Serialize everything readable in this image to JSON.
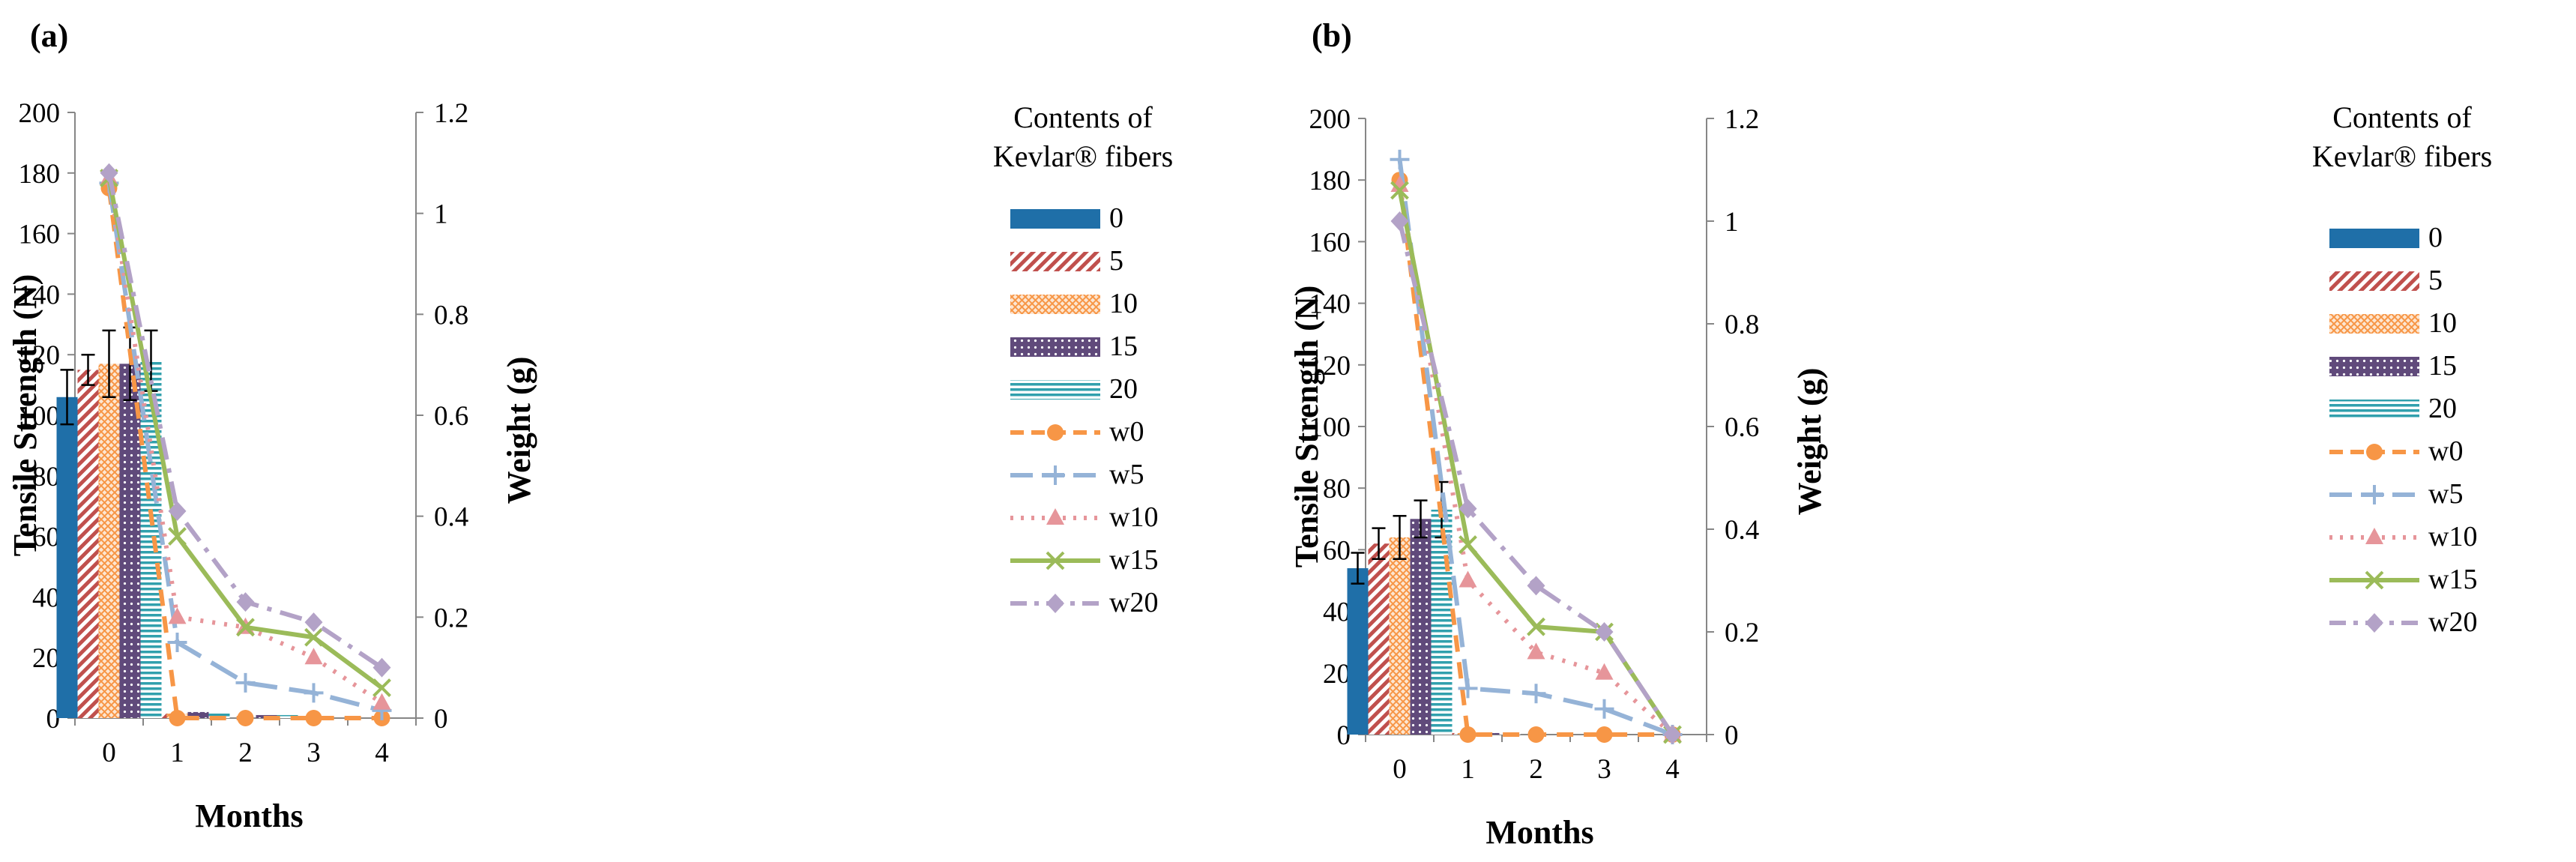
{
  "chart_data": [
    {
      "panel_label": "(a)",
      "type": "bar+line",
      "xlabel": "Months",
      "ylabel_left": "Tensile Strength  (N)",
      "ylabel_right": "Weight  (g)",
      "x": [
        "0",
        "1",
        "2",
        "3",
        "4"
      ],
      "ylim_left": [
        0,
        200
      ],
      "ylim_right": [
        0,
        1.2
      ],
      "yticks_left": [
        "0",
        "20",
        "40",
        "60",
        "80",
        "100",
        "120",
        "140",
        "160",
        "180",
        "200"
      ],
      "yticks_right": [
        "0",
        "0.2",
        "0.4",
        "0.6",
        "0.8",
        "1",
        "1.2"
      ],
      "grid": false,
      "legend_position": "right",
      "legend_title": [
        "Contents of",
        "Kevlar® fibers"
      ],
      "bar_series": [
        {
          "name": "0",
          "values": [
            106,
            1,
            0,
            0,
            0
          ],
          "error": [
            9,
            0,
            0,
            0,
            0
          ]
        },
        {
          "name": "5",
          "values": [
            115,
            1.5,
            0,
            0,
            0
          ],
          "error": [
            5,
            0,
            0,
            0,
            0
          ]
        },
        {
          "name": "10",
          "values": [
            117,
            1.5,
            0,
            0,
            0
          ],
          "error": [
            11,
            0,
            0,
            0,
            0
          ]
        },
        {
          "name": "15",
          "values": [
            117,
            2,
            1,
            0,
            0
          ],
          "error": [
            12,
            0,
            0,
            0,
            0
          ]
        },
        {
          "name": "20",
          "values": [
            118,
            2,
            1,
            0,
            0
          ],
          "error": [
            10,
            0,
            0,
            0,
            0
          ]
        }
      ],
      "line_series": [
        {
          "name": "w0",
          "values": [
            1.05,
            0.0,
            0.0,
            0.0,
            0.0
          ]
        },
        {
          "name": "w5",
          "values": [
            1.06,
            0.15,
            0.07,
            0.05,
            0.015
          ]
        },
        {
          "name": "w10",
          "values": [
            1.07,
            0.2,
            0.18,
            0.12,
            0.03
          ]
        },
        {
          "name": "w15",
          "values": [
            1.07,
            0.36,
            0.18,
            0.16,
            0.06
          ]
        },
        {
          "name": "w20",
          "values": [
            1.08,
            0.41,
            0.23,
            0.19,
            0.1
          ]
        }
      ]
    },
    {
      "panel_label": "(b)",
      "type": "bar+line",
      "xlabel": "Months",
      "ylabel_left": "Tensile Strength  (N)",
      "ylabel_right": "Weight  (g)",
      "x": [
        "0",
        "1",
        "2",
        "3",
        "4"
      ],
      "ylim_left": [
        0,
        200
      ],
      "ylim_right": [
        0,
        1.2
      ],
      "yticks_left": [
        "0",
        "20",
        "40",
        "60",
        "80",
        "100",
        "120",
        "140",
        "160",
        "180",
        "200"
      ],
      "yticks_right": [
        "0",
        "0.2",
        "0.4",
        "0.6",
        "0.8",
        "1",
        "1.2"
      ],
      "grid": false,
      "legend_position": "right",
      "legend_title": [
        "Contents of",
        "Kevlar® fibers"
      ],
      "bar_series": [
        {
          "name": "0",
          "values": [
            54,
            0,
            0,
            0,
            0
          ],
          "error": [
            5,
            0,
            0,
            0,
            0
          ]
        },
        {
          "name": "5",
          "values": [
            62,
            0.5,
            0,
            0,
            0
          ],
          "error": [
            5,
            0,
            0,
            0,
            0
          ]
        },
        {
          "name": "10",
          "values": [
            64,
            0.5,
            0,
            0,
            0
          ],
          "error": [
            7,
            0,
            0,
            0,
            0
          ]
        },
        {
          "name": "15",
          "values": [
            70,
            0.5,
            0,
            0,
            0
          ],
          "error": [
            6,
            0,
            0,
            0,
            0
          ]
        },
        {
          "name": "20",
          "values": [
            73,
            0.5,
            0,
            0,
            0
          ],
          "error": [
            9,
            0,
            0,
            0,
            0
          ]
        }
      ],
      "line_series": [
        {
          "name": "w0",
          "values": [
            1.08,
            0.0,
            0.0,
            0.0,
            0.0
          ]
        },
        {
          "name": "w5",
          "values": [
            1.12,
            0.09,
            0.08,
            0.05,
            0.0
          ]
        },
        {
          "name": "w10",
          "values": [
            1.07,
            0.3,
            0.16,
            0.12,
            0.0
          ]
        },
        {
          "name": "w15",
          "values": [
            1.06,
            0.37,
            0.21,
            0.2,
            0.0
          ]
        },
        {
          "name": "w20",
          "values": [
            1.0,
            0.44,
            0.29,
            0.2,
            0.0
          ]
        }
      ]
    }
  ],
  "style": {
    "bar_colors": [
      "#1f6fa8",
      "#c0504d",
      "#f79646",
      "#604a7b",
      "#31a0ad"
    ],
    "line_colors": [
      "#f79646",
      "#95b3d7",
      "#e6959a",
      "#9bbb59",
      "#b3a2c7"
    ],
    "marker_shapes": [
      "circle",
      "plus",
      "triangle",
      "cross",
      "diamond"
    ],
    "line_dashes": [
      "dash",
      "long-dash",
      "dot",
      "solid",
      "dash-dot"
    ]
  }
}
